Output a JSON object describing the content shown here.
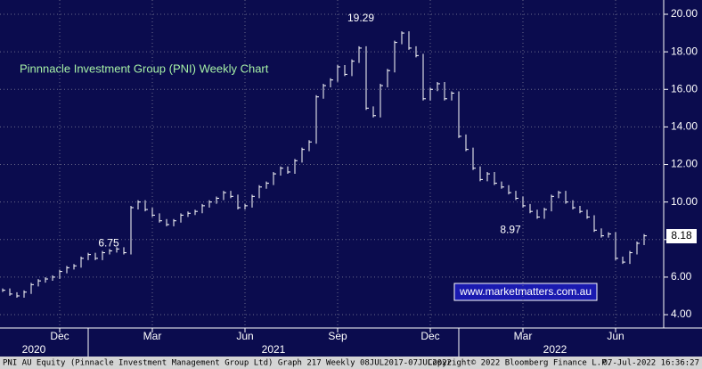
{
  "chart_data": {
    "type": "bar",
    "title": "Pinnnacle Investment Group (PNI) Weekly Chart",
    "watermark": "www.marketmatters.com.au",
    "footer_left": "PNI AU Equity (Pinnacle Investment Management Group Ltd) Graph 217  Weekly 08JUL2017-07JUL2022",
    "footer_center": "Copyright© 2022 Bloomberg Finance L.P.",
    "footer_right": "07-Jul-2022 16:36:27",
    "categories": [
      null,
      null,
      null,
      null,
      null,
      null,
      null,
      null,
      "Dec",
      null,
      null,
      null,
      null,
      null,
      null,
      null,
      null,
      null,
      null,
      null,
      null,
      "Mar",
      null,
      null,
      null,
      null,
      null,
      null,
      null,
      null,
      null,
      null,
      null,
      null,
      "Jun",
      null,
      null,
      null,
      null,
      null,
      null,
      null,
      null,
      null,
      null,
      null,
      null,
      "Sep",
      null,
      null,
      null,
      null,
      null,
      null,
      null,
      null,
      null,
      null,
      null,
      null,
      "Dec",
      null,
      null,
      null,
      null,
      null,
      null,
      null,
      null,
      null,
      null,
      null,
      null,
      "Mar",
      null,
      null,
      null,
      null,
      null,
      null,
      null,
      null,
      null,
      null,
      null,
      null,
      "Jun",
      null,
      null,
      null,
      null
    ],
    "years": [
      "2020",
      "2021",
      "2022"
    ],
    "values": [
      5.3,
      5.1,
      5.0,
      5.2,
      5.6,
      5.8,
      5.9,
      6.0,
      6.3,
      6.5,
      6.6,
      7.0,
      7.2,
      7.0,
      7.3,
      7.4,
      7.5,
      7.3,
      9.7,
      10.0,
      9.6,
      9.3,
      9.0,
      8.8,
      9.0,
      9.3,
      9.4,
      9.5,
      9.8,
      10.0,
      10.2,
      10.5,
      10.3,
      9.7,
      9.8,
      10.3,
      10.8,
      11.0,
      11.5,
      11.8,
      11.6,
      12.2,
      12.8,
      13.2,
      15.6,
      16.2,
      16.5,
      17.2,
      16.8,
      17.5,
      18.2,
      15.0,
      14.6,
      16.2,
      17.0,
      18.5,
      19.0,
      18.2,
      17.8,
      15.5,
      16.0,
      16.3,
      15.5,
      15.8,
      13.5,
      12.8,
      11.8,
      11.2,
      11.5,
      11.0,
      10.8,
      10.5,
      10.2,
      9.8,
      9.5,
      9.2,
      9.6,
      10.3,
      10.5,
      10.0,
      9.7,
      9.5,
      9.2,
      8.5,
      8.2,
      8.3,
      7.0,
      6.8,
      7.3,
      7.8,
      8.2
    ],
    "color": "#ffffff",
    "annotations": [
      {
        "text": "19.29",
        "value": 19.29
      },
      {
        "text": "6.75",
        "value": 6.75
      },
      {
        "text": "8.97",
        "value": 8.97
      }
    ],
    "last_price": {
      "value": 8.18,
      "label": "8.18"
    },
    "ylim": [
      3.29,
      20.76
    ],
    "yticks": [
      {
        "value": 4,
        "label": "4.00"
      },
      {
        "value": 6,
        "label": "6.00"
      },
      {
        "value": 8,
        "label": "8.00"
      },
      {
        "value": 10,
        "label": "10.00"
      },
      {
        "value": 12,
        "label": "12.00"
      },
      {
        "value": 14,
        "label": "14.00"
      },
      {
        "value": 16,
        "label": "16.00"
      },
      {
        "value": 18,
        "label": "18.00"
      },
      {
        "value": 20,
        "label": "20.00"
      }
    ],
    "grid": true
  }
}
